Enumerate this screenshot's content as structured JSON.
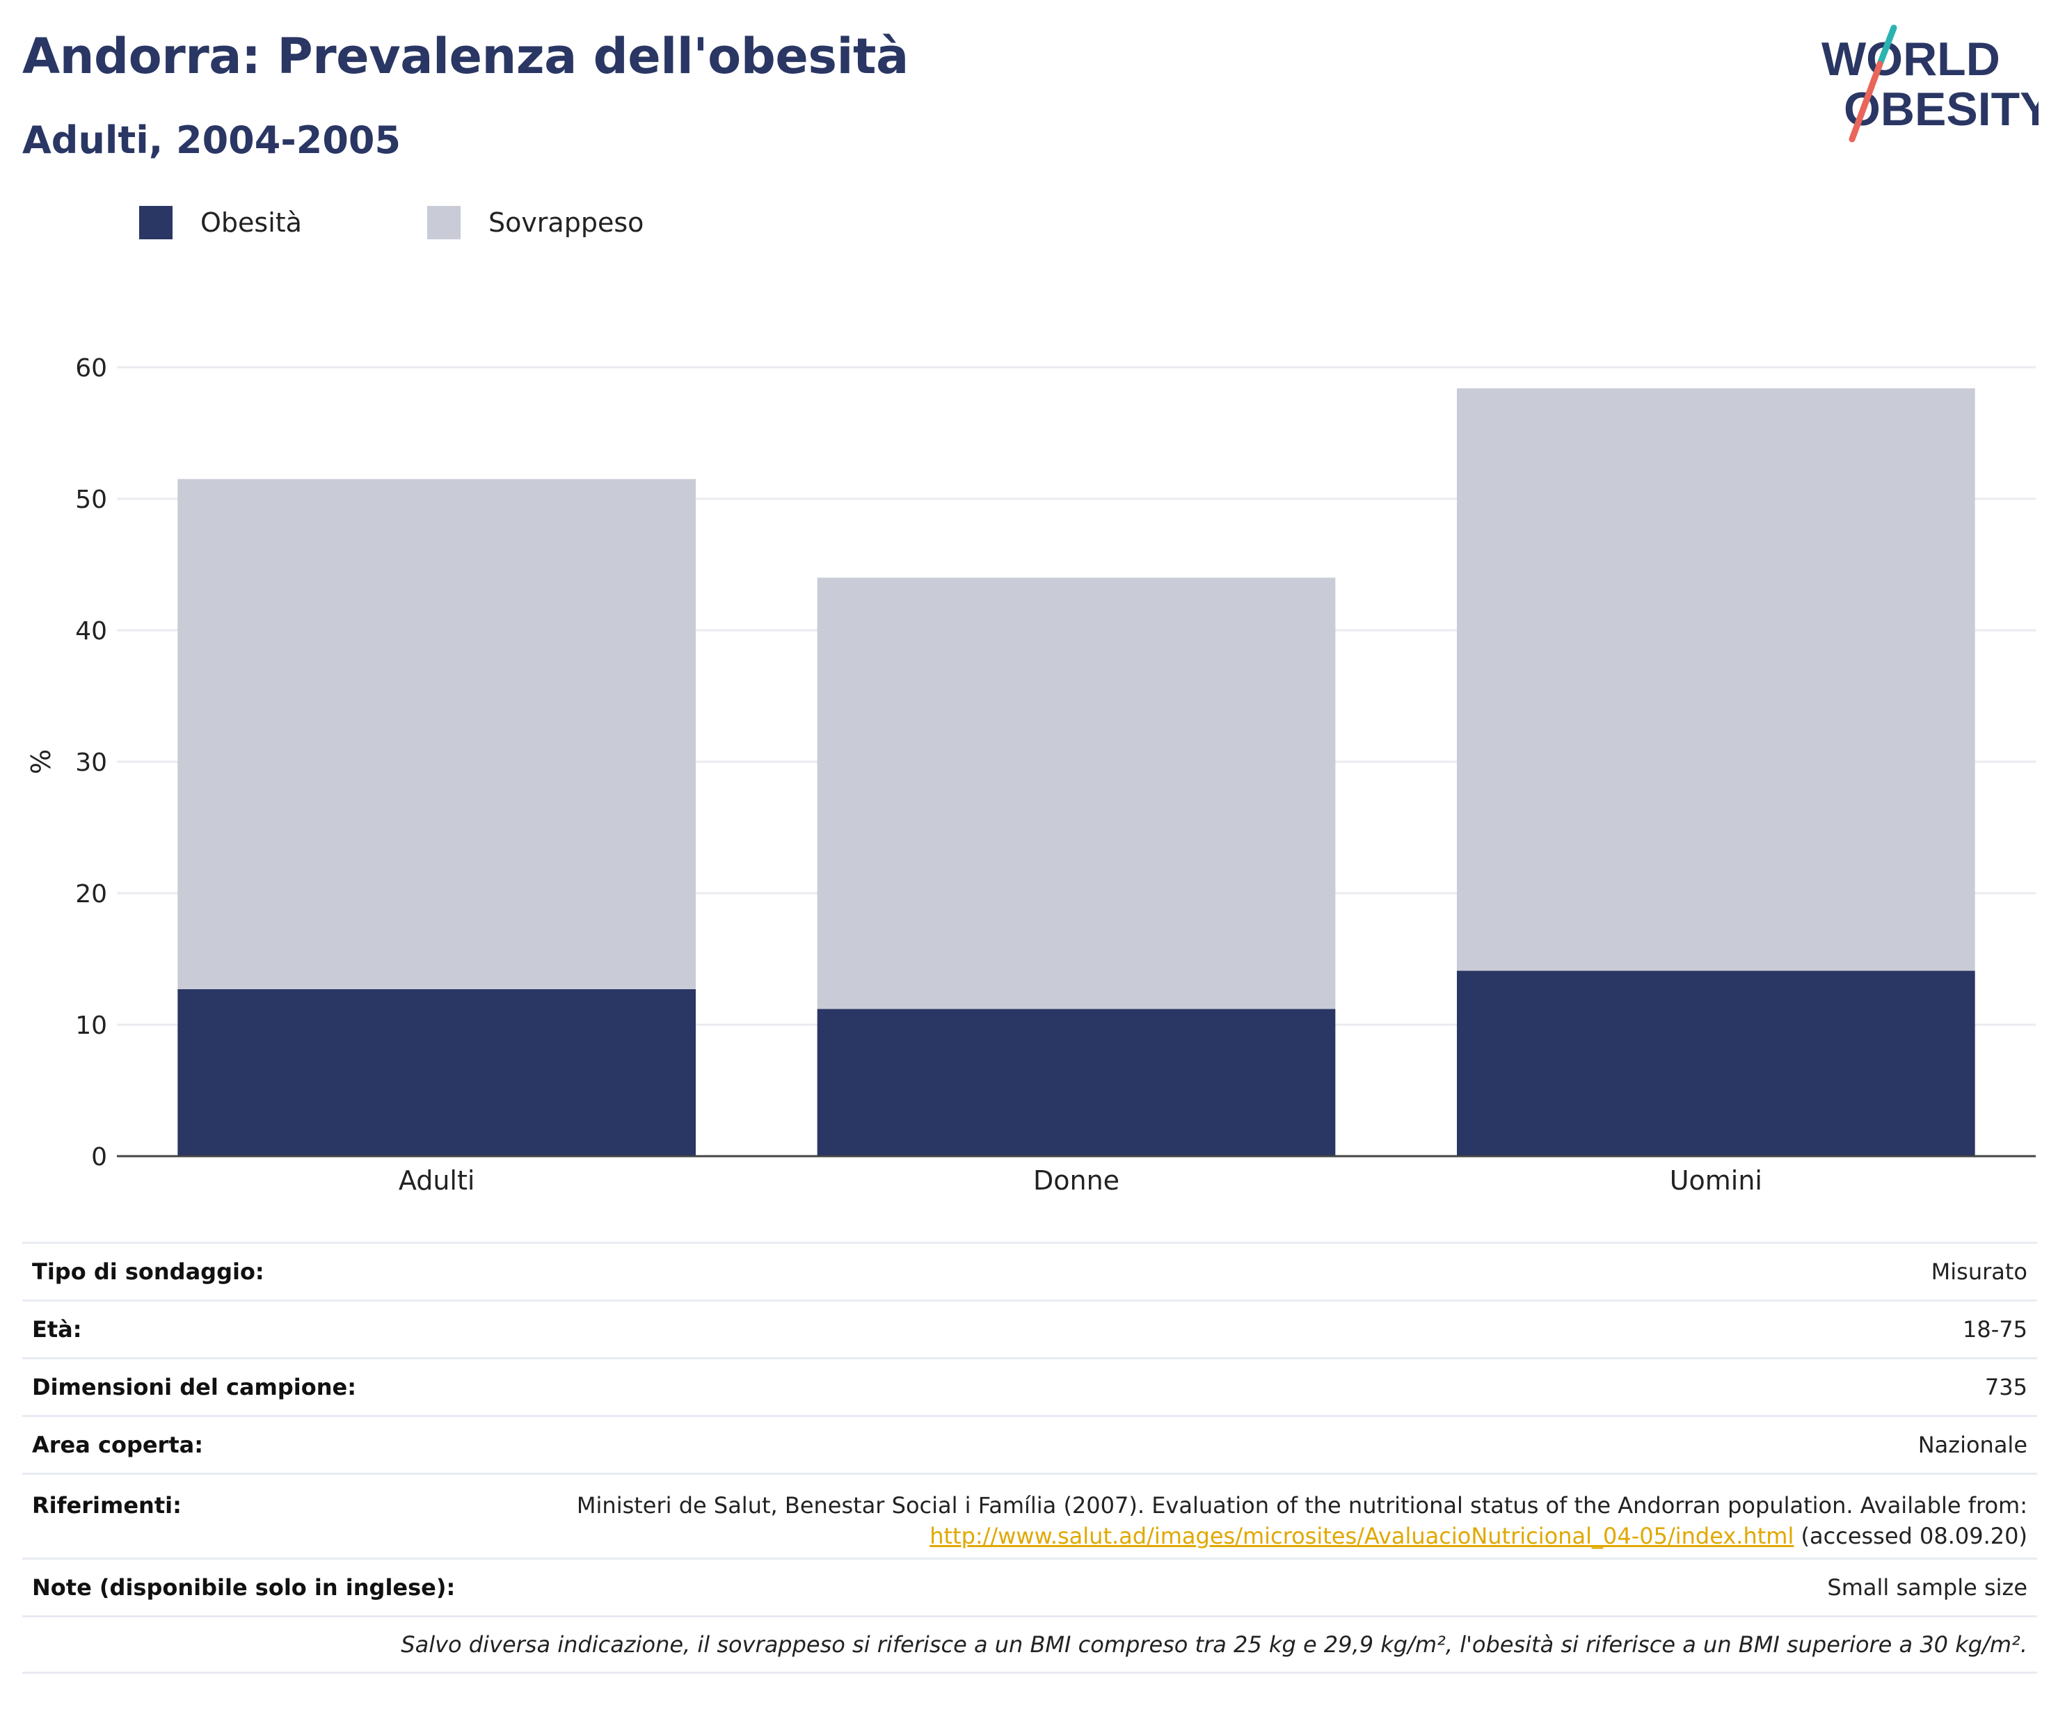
{
  "title": "Andorra: Prevalenza dell'obesità",
  "subtitle": "Adulti, 2004-2005",
  "logo": {
    "line1": "WORLD",
    "line2": "OBESITY"
  },
  "colors": {
    "obesity": "#2a3663",
    "overweight": "#c9cbd6",
    "title": "#2a3663",
    "link": "#e0a800"
  },
  "chart_data": {
    "type": "bar",
    "stacked": true,
    "categories": [
      "Adulti",
      "Donne",
      "Uomini"
    ],
    "series": [
      {
        "name": "Obesità",
        "values": [
          12.7,
          11.2,
          14.1
        ]
      },
      {
        "name": "Sovrappeso",
        "values": [
          38.8,
          32.8,
          44.3
        ]
      }
    ],
    "ylabel": "%",
    "ylim": [
      0,
      60
    ],
    "yticks": [
      0,
      10,
      20,
      30,
      40,
      50,
      60
    ],
    "grid": true,
    "legend": "top-left"
  },
  "table": {
    "survey_type": {
      "label": "Tipo di sondaggio:",
      "value": "Misurato"
    },
    "age": {
      "label": "Età:",
      "value": "18-75"
    },
    "sample": {
      "label": "Dimensioni del campione:",
      "value": "735"
    },
    "area": {
      "label": "Area coperta:",
      "value": "Nazionale"
    },
    "references": {
      "label": "Riferimenti:",
      "text": "Ministeri de Salut, Benestar Social i Família (2007). Evaluation of the nutritional status of the Andorran population. Available from:",
      "link": "http://www.salut.ad/images/microsites/AvaluacioNutricional_04-05/index.html",
      "suffix": "(accessed 08.09.20)"
    },
    "notes": {
      "label": "Note (disponibile solo in inglese):",
      "value": "Small sample size"
    }
  },
  "footnote": "Salvo diversa indicazione, il sovrappeso si riferisce a un BMI compreso tra 25 kg e 29,9 kg/m², l'obesità si riferisce a un BMI superiore a 30 kg/m²."
}
